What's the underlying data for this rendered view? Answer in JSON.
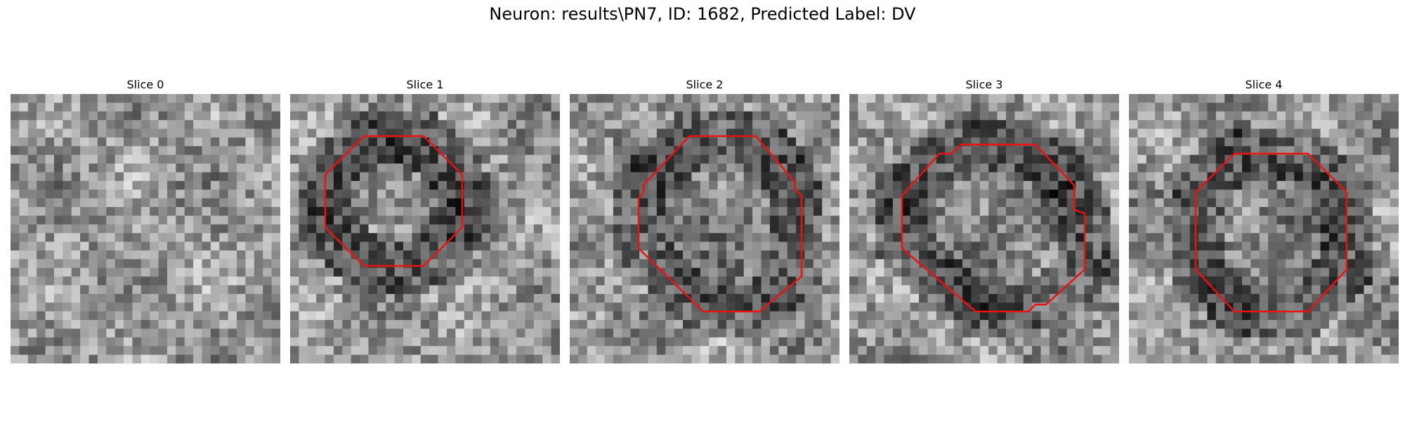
{
  "figure": {
    "title": "Neuron: results\\PN7, ID: 1682, Predicted Label: DV"
  },
  "slices": [
    {
      "label": "Slice 0",
      "has_contour": false,
      "seed": 11
    },
    {
      "label": "Slice 1",
      "has_contour": true,
      "seed": 23
    },
    {
      "label": "Slice 2",
      "has_contour": true,
      "seed": 37
    },
    {
      "label": "Slice 3",
      "has_contour": true,
      "seed": 41
    },
    {
      "label": "Slice 4",
      "has_contour": true,
      "seed": 53
    }
  ],
  "colors": {
    "contour": "#ee1111",
    "background": "#ffffff",
    "text": "#000000"
  }
}
